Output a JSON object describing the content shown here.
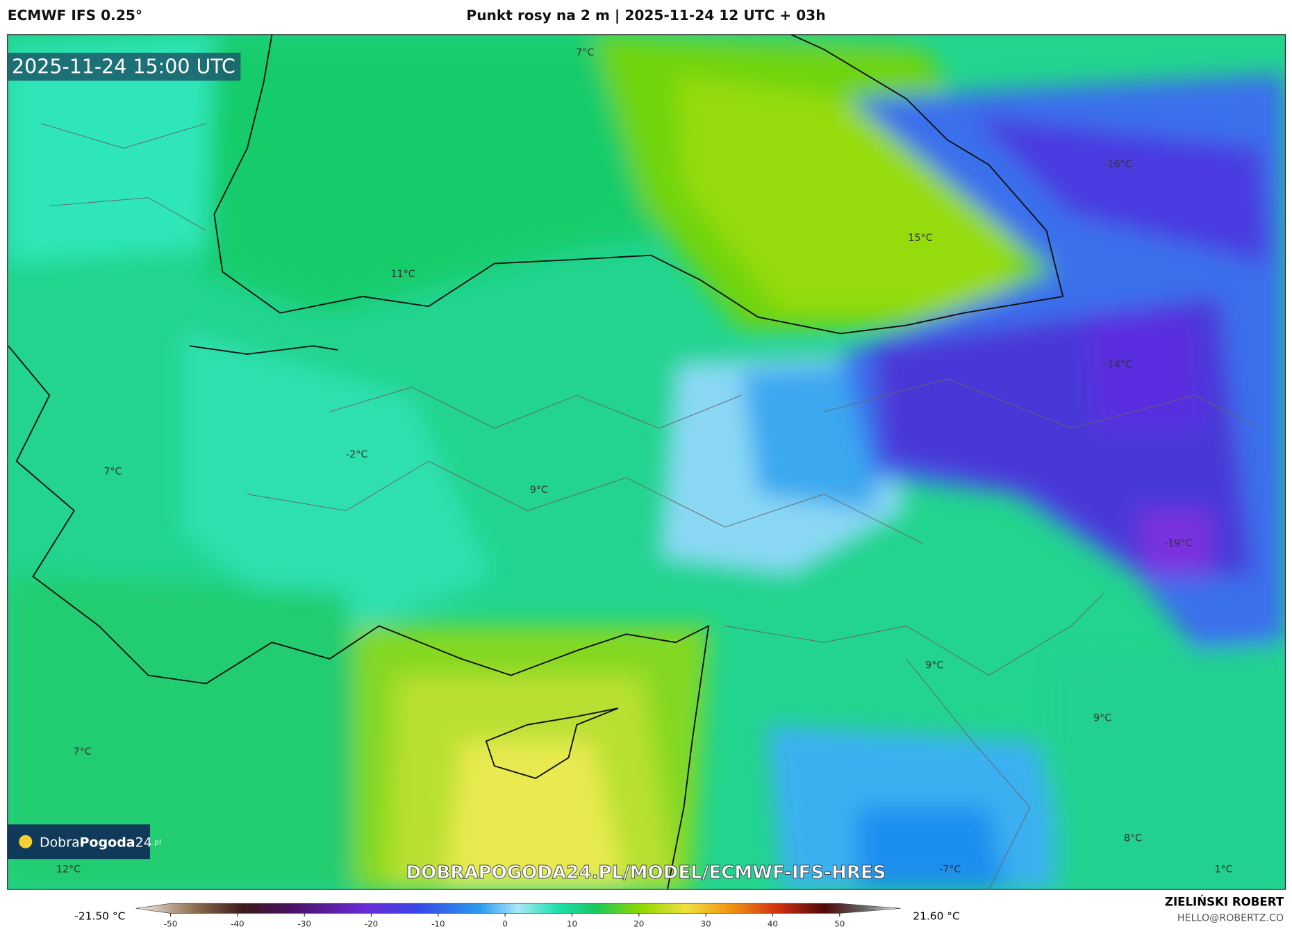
{
  "header": {
    "left": "ECMWF IFS 0.25°",
    "center": "Punkt rosy na 2 m | 2025-11-24 12 UTC + 03h"
  },
  "map": {
    "valid_time": "2025-11-24 15:00 UTC",
    "labels": [
      "7°C",
      "15°C",
      "11°C",
      "-16°C",
      "-14°C",
      "-2°C",
      "7°C",
      "9°C",
      "-19°C",
      "9°C",
      "9°C",
      "7°C",
      "8°C",
      "12°C",
      "-7°C",
      "1°C"
    ],
    "watermark": "DOBRAPOGODA24.PL/MODEL/ECMWF-IFS-HRES",
    "logo": {
      "dobra": "Dobra",
      "pogoda": "Pogoda",
      "num": "24",
      "domain": ".pl"
    }
  },
  "colorbar": {
    "min_label": "-21.50 °C",
    "max_label": "21.60 °C",
    "ticks": [
      -50,
      -40,
      -30,
      -20,
      -10,
      0,
      10,
      20,
      30,
      40,
      50
    ]
  },
  "footer": {
    "author": "ZIELIŃSKI ROBERT",
    "email": "HELLO@ROBERTZ.CO"
  }
}
